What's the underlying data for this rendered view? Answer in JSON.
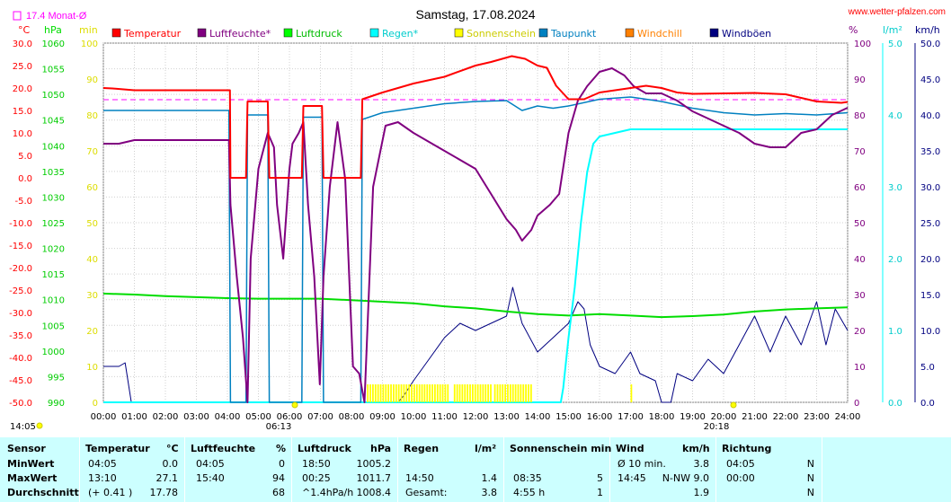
{
  "header": {
    "title": "Samstag, 17.08.2024",
    "website": "www.wetter-pfalzen.com",
    "month_avg_label": "17.4 Monat-Ø",
    "unit_temp": "°C",
    "unit_hpa": "hPa",
    "unit_min": "min",
    "unit_pct": "%",
    "unit_lm2": "l/m²",
    "unit_kmh": "km/h"
  },
  "colors": {
    "temperatur": "#ff0000",
    "luftfeuchte": "#800080",
    "luftdruck": "#00dd00",
    "regen": "#00ffff",
    "sonnenschein": "#ffff00",
    "taupunkt": "#0080c0",
    "windchill": "#ff8000",
    "windboeen": "#000080",
    "monat_avg": "#ff00ff"
  },
  "legend": [
    {
      "label": "Temperatur",
      "color": "#ff0000"
    },
    {
      "label": "Luftfeuchte*",
      "color": "#800080"
    },
    {
      "label": "Luftdruck",
      "color": "#00ff00"
    },
    {
      "label": "Regen*",
      "color": "#00ffff"
    },
    {
      "label": "Sonnenschein",
      "color": "#ffff00"
    },
    {
      "label": "Taupunkt",
      "color": "#0080c0"
    },
    {
      "label": "Windchill",
      "color": "#ff8000"
    },
    {
      "label": "Windböen",
      "color": "#000080"
    }
  ],
  "axes": {
    "temp_ticks": [
      "30.0",
      "25.0",
      "20.0",
      "15.0",
      "10.0",
      "5.0",
      "0.0",
      "-5.0",
      "-10.0",
      "-15.0",
      "-20.0",
      "-25.0",
      "-30.0",
      "-35.0",
      "-40.0",
      "-45.0",
      "-50.0"
    ],
    "hpa_ticks": [
      "1060",
      "1055",
      "1050",
      "1045",
      "1040",
      "1035",
      "1030",
      "1025",
      "1020",
      "1015",
      "1010",
      "1005",
      "1000",
      "995",
      "990"
    ],
    "min_ticks": [
      "100",
      "90",
      "80",
      "70",
      "60",
      "50",
      "40",
      "30",
      "20",
      "10",
      "0"
    ],
    "pct_ticks": [
      "100",
      "90",
      "80",
      "70",
      "60",
      "50",
      "40",
      "30",
      "20",
      "10",
      "0"
    ],
    "rain_ticks": [
      "5.0",
      "4.0",
      "3.0",
      "2.0",
      "1.0",
      "0.0"
    ],
    "wind_ticks": [
      "50.0",
      "45.0",
      "40.0",
      "35.0",
      "30.0",
      "25.0",
      "20.0",
      "15.0",
      "10.0",
      "5.0",
      "0.0"
    ],
    "x_ticks": [
      "00:00",
      "01:00",
      "02:00",
      "03:00",
      "04:00",
      "05:00",
      "06:00",
      "07:00",
      "08:00",
      "09:00",
      "10:00",
      "11:00",
      "12:00",
      "13:00",
      "14:00",
      "15:00",
      "16:00",
      "17:00",
      "18:00",
      "19:00",
      "20:00",
      "21:00",
      "22:00",
      "23:00",
      "24:00"
    ],
    "sunrise": "06:13",
    "sunset": "20:18",
    "corner_time": "14:05"
  },
  "chart_data": {
    "type": "line",
    "title": "Samstag, 17.08.2024",
    "xlabel": "",
    "x_unit": "hours",
    "month_avg_temp": 17.4,
    "series": [
      {
        "name": "Temperatur",
        "axis": "temp",
        "points": [
          [
            0,
            20.0
          ],
          [
            0.3,
            19.9
          ],
          [
            1,
            19.5
          ],
          [
            4.08,
            19.5
          ],
          [
            4.1,
            0
          ],
          [
            4.6,
            0
          ],
          [
            4.65,
            17.0
          ],
          [
            5.3,
            17.0
          ],
          [
            5.35,
            0
          ],
          [
            6.4,
            0
          ],
          [
            6.45,
            16.0
          ],
          [
            7.05,
            16.0
          ],
          [
            7.1,
            0
          ],
          [
            8.3,
            0
          ],
          [
            8.35,
            17.5
          ],
          [
            9,
            19.0
          ],
          [
            10,
            21.0
          ],
          [
            11,
            22.5
          ],
          [
            12,
            25.0
          ],
          [
            12.5,
            25.8
          ],
          [
            13.17,
            27.1
          ],
          [
            13.6,
            26.5
          ],
          [
            14,
            25.0
          ],
          [
            14.3,
            24.5
          ],
          [
            14.6,
            20.5
          ],
          [
            15,
            17.5
          ],
          [
            15.5,
            17.5
          ],
          [
            16,
            19.0
          ],
          [
            16.5,
            19.5
          ],
          [
            17,
            20.0
          ],
          [
            17.5,
            20.5
          ],
          [
            18,
            20.0
          ],
          [
            18.5,
            19.0
          ],
          [
            19,
            18.7
          ],
          [
            20,
            18.8
          ],
          [
            21,
            18.9
          ],
          [
            22,
            18.6
          ],
          [
            22.5,
            17.8
          ],
          [
            23,
            17.0
          ],
          [
            23.8,
            16.7
          ],
          [
            24,
            16.9
          ]
        ]
      },
      {
        "name": "Luftfeuchte*",
        "axis": "pct",
        "points": [
          [
            0,
            72
          ],
          [
            0.5,
            72
          ],
          [
            1,
            73
          ],
          [
            4.05,
            73
          ],
          [
            4.1,
            55
          ],
          [
            4.3,
            35
          ],
          [
            4.5,
            18
          ],
          [
            4.65,
            0
          ],
          [
            4.75,
            40
          ],
          [
            5,
            65
          ],
          [
            5.3,
            75
          ],
          [
            5.5,
            71
          ],
          [
            5.6,
            55
          ],
          [
            5.8,
            40
          ],
          [
            6,
            65
          ],
          [
            6.1,
            72
          ],
          [
            6.3,
            75
          ],
          [
            6.45,
            78
          ],
          [
            6.6,
            55
          ],
          [
            6.8,
            35
          ],
          [
            6.98,
            5
          ],
          [
            7.1,
            35
          ],
          [
            7.3,
            60
          ],
          [
            7.55,
            78
          ],
          [
            7.8,
            62
          ],
          [
            7.95,
            30
          ],
          [
            8.05,
            10
          ],
          [
            8.25,
            8
          ],
          [
            8.42,
            0
          ],
          [
            8.7,
            60
          ],
          [
            9.1,
            77
          ],
          [
            9.5,
            78
          ],
          [
            10,
            75
          ],
          [
            11,
            70
          ],
          [
            12,
            65
          ],
          [
            12.5,
            58
          ],
          [
            13,
            51
          ],
          [
            13.3,
            48
          ],
          [
            13.5,
            45
          ],
          [
            13.8,
            48
          ],
          [
            14,
            52
          ],
          [
            14.4,
            55
          ],
          [
            14.7,
            58
          ],
          [
            15,
            75
          ],
          [
            15.3,
            84
          ],
          [
            15.6,
            88
          ],
          [
            16,
            92
          ],
          [
            16.4,
            93
          ],
          [
            16.8,
            91
          ],
          [
            17.1,
            88
          ],
          [
            17.5,
            86
          ],
          [
            18,
            86
          ],
          [
            18.5,
            84
          ],
          [
            19,
            81
          ],
          [
            19.5,
            79
          ],
          [
            20,
            77
          ],
          [
            20.5,
            75
          ],
          [
            21,
            72
          ],
          [
            21.5,
            71
          ],
          [
            22,
            71
          ],
          [
            22.5,
            75
          ],
          [
            23,
            76
          ],
          [
            23.5,
            80
          ],
          [
            24,
            82
          ]
        ]
      },
      {
        "name": "Luftdruck",
        "axis": "hpa",
        "points": [
          [
            0,
            1011.2
          ],
          [
            1,
            1011.0
          ],
          [
            2,
            1010.7
          ],
          [
            3,
            1010.5
          ],
          [
            4,
            1010.3
          ],
          [
            5,
            1010.2
          ],
          [
            6,
            1010.2
          ],
          [
            7,
            1010.2
          ],
          [
            8,
            1009.9
          ],
          [
            9,
            1009.6
          ],
          [
            10,
            1009.3
          ],
          [
            11,
            1008.7
          ],
          [
            12,
            1008.3
          ],
          [
            13,
            1007.7
          ],
          [
            14,
            1007.2
          ],
          [
            15,
            1006.9
          ],
          [
            16,
            1007.2
          ],
          [
            17,
            1006.9
          ],
          [
            18,
            1006.6
          ],
          [
            19,
            1006.8
          ],
          [
            20,
            1007.1
          ],
          [
            21,
            1007.7
          ],
          [
            22,
            1008.1
          ],
          [
            23,
            1008.3
          ],
          [
            24,
            1008.5
          ]
        ]
      },
      {
        "name": "Regen*",
        "axis": "rain",
        "points": [
          [
            0,
            0
          ],
          [
            14.75,
            0
          ],
          [
            14.83,
            0.2
          ],
          [
            15,
            0.9
          ],
          [
            15.2,
            1.6
          ],
          [
            15.4,
            2.5
          ],
          [
            15.6,
            3.2
          ],
          [
            15.8,
            3.6
          ],
          [
            16,
            3.7
          ],
          [
            17,
            3.8
          ],
          [
            18,
            3.8
          ],
          [
            24,
            3.8
          ]
        ]
      },
      {
        "name": "Taupunkt",
        "axis": "temp",
        "points": [
          [
            0,
            15.0
          ],
          [
            4.05,
            15.0
          ],
          [
            4.1,
            -50.0
          ],
          [
            4.6,
            -50.0
          ],
          [
            4.65,
            14.0
          ],
          [
            5.3,
            14.0
          ],
          [
            5.35,
            -50.0
          ],
          [
            6.4,
            -50.0
          ],
          [
            6.45,
            13.5
          ],
          [
            7.05,
            13.5
          ],
          [
            7.1,
            -50.0
          ],
          [
            8.3,
            -50.0
          ],
          [
            8.35,
            13.0
          ],
          [
            9,
            14.5
          ],
          [
            10,
            15.5
          ],
          [
            11,
            16.5
          ],
          [
            12,
            17.0
          ],
          [
            13,
            17.2
          ],
          [
            13.5,
            15.0
          ],
          [
            14,
            16.0
          ],
          [
            14.5,
            15.5
          ],
          [
            15,
            16.0
          ],
          [
            16,
            17.5
          ],
          [
            17,
            18.0
          ],
          [
            17.5,
            17.5
          ],
          [
            18,
            17.0
          ],
          [
            19,
            15.5
          ],
          [
            20,
            14.5
          ],
          [
            21,
            14.0
          ],
          [
            22,
            14.3
          ],
          [
            23,
            14.0
          ],
          [
            24,
            14.5
          ]
        ]
      },
      {
        "name": "Windböen",
        "axis": "wind",
        "points": [
          [
            0,
            5
          ],
          [
            0.5,
            5
          ],
          [
            0.7,
            5.5
          ],
          [
            0.9,
            0
          ],
          [
            1.2,
            0
          ],
          [
            9.5,
            0
          ],
          [
            9.7,
            1
          ],
          [
            10,
            3
          ],
          [
            10.5,
            6
          ],
          [
            11,
            9
          ],
          [
            11.5,
            11
          ],
          [
            12,
            10
          ],
          [
            12.5,
            11
          ],
          [
            13,
            12
          ],
          [
            13.2,
            16
          ],
          [
            13.5,
            11
          ],
          [
            14,
            7
          ],
          [
            14.5,
            9
          ],
          [
            15,
            11
          ],
          [
            15.3,
            14
          ],
          [
            15.5,
            13
          ],
          [
            15.7,
            8
          ],
          [
            16,
            5
          ],
          [
            16.5,
            4
          ],
          [
            17,
            7
          ],
          [
            17.3,
            4
          ],
          [
            17.8,
            3
          ],
          [
            18,
            0
          ],
          [
            18.3,
            0
          ],
          [
            18.5,
            4
          ],
          [
            19,
            3
          ],
          [
            19.5,
            6
          ],
          [
            20,
            4
          ],
          [
            20.5,
            8
          ],
          [
            21,
            12
          ],
          [
            21.5,
            7
          ],
          [
            22,
            12
          ],
          [
            22.5,
            8
          ],
          [
            23,
            14
          ],
          [
            23.3,
            8
          ],
          [
            23.6,
            13
          ],
          [
            24,
            10
          ]
        ]
      },
      {
        "name": "Sonnenschein",
        "axis": "min",
        "points": [
          [
            8.5,
            5
          ],
          [
            11.1,
            5
          ],
          [
            11.3,
            5
          ],
          [
            12.5,
            5
          ],
          [
            12.6,
            5
          ],
          [
            13.8,
            5
          ],
          [
            17.0,
            5
          ],
          [
            17.05,
            5
          ]
        ]
      }
    ],
    "windboeen_daily_range": [
      0,
      17
    ]
  },
  "stats": {
    "headers": {
      "sensor": "Sensor",
      "temperatur": "Temperatur",
      "temp_unit": "°C",
      "luftfeuchte": "Luftfeuchte",
      "lf_unit": "%",
      "luftdruck": "Luftdruck",
      "ld_unit": "hPa",
      "regen": "Regen",
      "regen_unit": "l/m²",
      "sonne": "Sonnenschein min",
      "wind": "Wind",
      "wind_unit": "km/h",
      "richtung": "Richtung"
    },
    "rows": [
      {
        "label": "MinWert",
        "t_time": "04:05",
        "t_val": "0.0",
        "lf_time": "04:05",
        "lf_val": "0",
        "ld_time": "18:50",
        "ld_val": "1005.2",
        "r_time": "",
        "r_val": "",
        "s_time": "",
        "s_val": "",
        "w_time": "Ø 10 min.",
        "w_val": "3.8",
        "d_time": "04:05",
        "d_val": "N"
      },
      {
        "label": "MaxWert",
        "t_time": "13:10",
        "t_val": "27.1",
        "lf_time": "15:40",
        "lf_val": "94",
        "ld_time": "00:25",
        "ld_val": "1011.7",
        "r_time": "14:50",
        "r_val": "1.4",
        "s_time": "08:35",
        "s_val": "5",
        "w_time": "14:45",
        "w_val": "N-NW 9.0",
        "d_time": "00:00",
        "d_val": "N"
      },
      {
        "label": "Durchschnitt",
        "t_time": "(+ 0.41 )",
        "t_val": "17.78",
        "lf_time": "",
        "lf_val": "68",
        "ld_time": "^1.4hPa/h",
        "ld_val": "1008.4",
        "r_time": "Gesamt:",
        "r_val": "3.8",
        "s_time": "4:55 h",
        "s_val": "1",
        "w_time": "",
        "w_val": "1.9",
        "d_time": "",
        "d_val": "N"
      }
    ]
  }
}
